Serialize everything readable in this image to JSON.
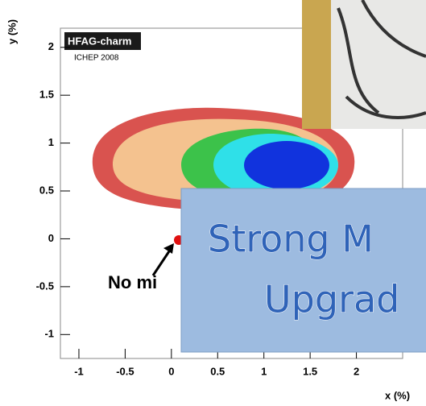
{
  "chart_data": {
    "type": "contour",
    "x_label": "x (%)",
    "y_label": "y (%)",
    "logo": "HFAG-charm",
    "subtitle": "ICHEP 2008",
    "annotation": "No mi",
    "xlim": [
      -1.2,
      2.5
    ],
    "ylim": [
      -1.25,
      2.2
    ],
    "xticks": [
      -1,
      -0.5,
      0,
      0.5,
      1,
      1.5,
      2
    ],
    "yticks": [
      -1,
      -0.5,
      0,
      0.5,
      1,
      1.5,
      2
    ]
  },
  "overlay": {
    "lines": [
      "Strong  M",
      "Upgrad"
    ]
  }
}
